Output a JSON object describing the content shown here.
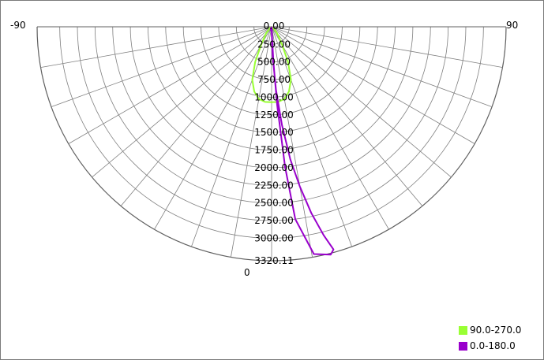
{
  "chart_data": {
    "type": "polar",
    "angle_labels": {
      "left": "-90",
      "right": "90",
      "bottom": "0"
    },
    "angle_range": [
      -90,
      90
    ],
    "angle_step": 10,
    "radius_ticks": [
      "0.00",
      "250.00",
      "500.00",
      "750.00",
      "1000.00",
      "1250.00",
      "1500.00",
      "1750.00",
      "2000.00",
      "2250.00",
      "2500.00",
      "2750.00",
      "3000.00",
      "3320.11"
    ],
    "rmax": 3320.11,
    "grid": true,
    "legend_position": "bottom-right",
    "series": [
      {
        "name": "90.0-270.0",
        "color": "#99ff33",
        "points": [
          [
            -90,
            0
          ],
          [
            -60,
            20
          ],
          [
            -40,
            120
          ],
          [
            -30,
            300
          ],
          [
            -25,
            550
          ],
          [
            -20,
            800
          ],
          [
            -15,
            950
          ],
          [
            -10,
            1040
          ],
          [
            -5,
            1070
          ],
          [
            0,
            1070
          ],
          [
            5,
            1070
          ],
          [
            10,
            1040
          ],
          [
            15,
            950
          ],
          [
            20,
            800
          ],
          [
            25,
            550
          ],
          [
            30,
            300
          ],
          [
            40,
            120
          ],
          [
            60,
            20
          ],
          [
            90,
            0
          ]
        ]
      },
      {
        "name": "0.0-180.0",
        "color": "#9900cc",
        "points": [
          [
            -90,
            0
          ],
          [
            -40,
            10
          ],
          [
            -20,
            40
          ],
          [
            -5,
            60
          ],
          [
            0,
            50
          ],
          [
            2,
            400
          ],
          [
            4,
            900
          ],
          [
            6,
            1400
          ],
          [
            8,
            1900
          ],
          [
            10,
            2300
          ],
          [
            12,
            2700
          ],
          [
            14,
            3050
          ],
          [
            15.5,
            3280
          ],
          [
            14.5,
            3340
          ],
          [
            10.5,
            3280
          ],
          [
            7,
            2750
          ],
          [
            5.5,
            2000
          ],
          [
            4,
            1100
          ],
          [
            3,
            500
          ],
          [
            2.5,
            100
          ],
          [
            5,
            20
          ],
          [
            30,
            10
          ],
          [
            90,
            0
          ]
        ]
      }
    ]
  }
}
